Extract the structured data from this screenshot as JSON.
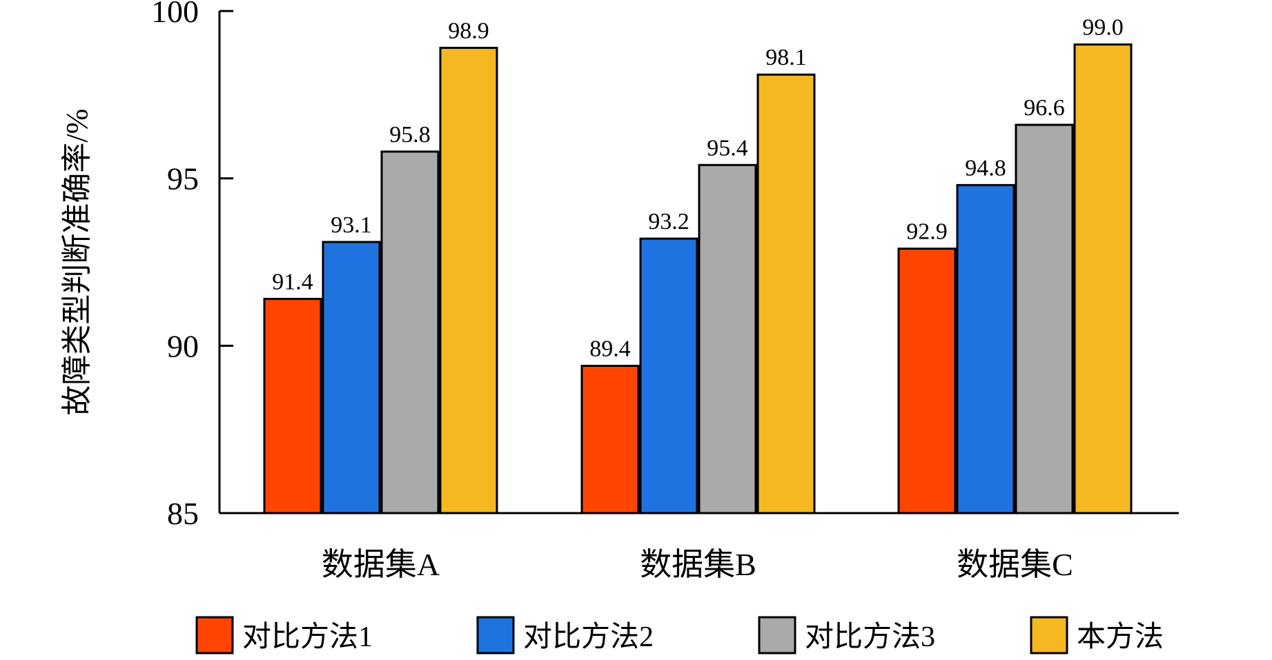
{
  "chart_data": {
    "type": "bar",
    "title": "",
    "xlabel": "",
    "ylabel": "故障类型判断准确率/%",
    "ylim": [
      85,
      100
    ],
    "yticks": [
      85,
      90,
      95,
      100
    ],
    "grid": false,
    "legend_position": "bottom",
    "categories": [
      "数据集A",
      "数据集B",
      "数据集C"
    ],
    "series": [
      {
        "name": "对比方法1",
        "color": "#FF4500",
        "values": [
          91.4,
          89.4,
          92.9
        ],
        "labels": [
          "91.4",
          "89.4",
          "92.9"
        ]
      },
      {
        "name": "对比方法2",
        "color": "#1E73E0",
        "values": [
          93.1,
          93.2,
          94.8
        ],
        "labels": [
          "93.1",
          "93.2",
          "94.8"
        ]
      },
      {
        "name": "对比方法3",
        "color": "#AAAAAA",
        "values": [
          95.8,
          95.4,
          96.6
        ],
        "labels": [
          "95.8",
          "95.4",
          "96.6"
        ]
      },
      {
        "name": "本方法",
        "color": "#F5B820",
        "values": [
          98.9,
          98.1,
          99.0
        ],
        "labels": [
          "98.9",
          "98.1",
          "99.0"
        ]
      }
    ]
  }
}
